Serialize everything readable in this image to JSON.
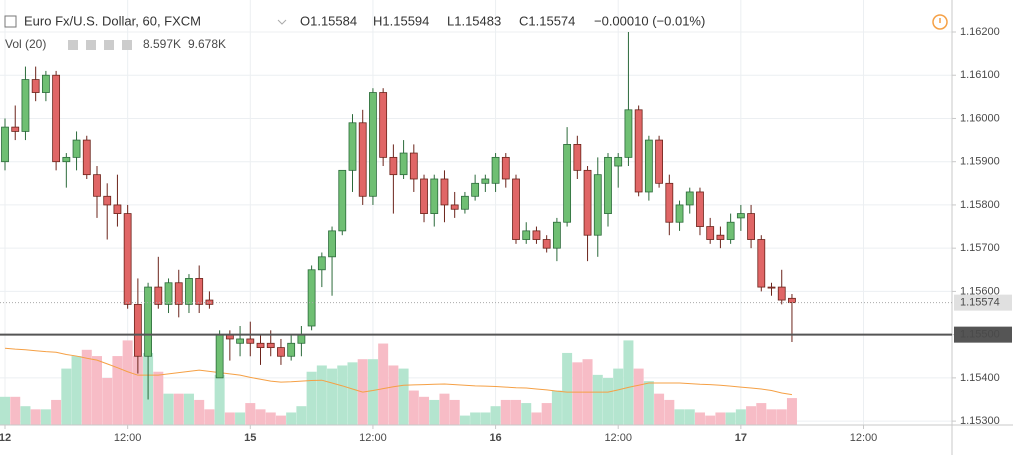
{
  "chart_data": {
    "type": "candlestick",
    "title": "Euro Fx/U.S. Dollar, 60, FXCM",
    "ohlc_legend": [
      "O1.15584",
      "H1.15594",
      "L1.15483",
      "C1.15574"
    ],
    "change": "−0.00010 (−0.01%)",
    "volume_legend": {
      "name": "Vol (20)",
      "volume": "8.597K",
      "ma": "9.678K"
    },
    "open": [
      1.159,
      1.1598,
      1.1597,
      1.1609,
      1.1606,
      1.161,
      1.159,
      1.1591,
      1.1595,
      1.1587,
      1.1582,
      1.158,
      1.1578,
      1.1557,
      1.1545,
      1.1561,
      1.1557,
      1.1562,
      1.1557,
      1.1563,
      1.1558,
      1.154,
      1.155,
      1.1548,
      1.1549,
      1.1548,
      1.1548,
      1.1547,
      1.1545,
      1.1548,
      1.1552,
      1.1565,
      1.1568,
      1.1574,
      1.1588,
      1.1599,
      1.1582,
      1.1606,
      1.1591,
      1.1587,
      1.1592,
      1.1586,
      1.1578,
      1.1586,
      1.158,
      1.1579,
      1.1582,
      1.1585,
      1.1585,
      1.1591,
      1.1586,
      1.1572,
      1.1574,
      1.1572,
      1.157,
      1.1576,
      1.1594,
      1.1588,
      1.1573,
      1.1578,
      1.1589,
      1.1591,
      1.1602,
      1.1583,
      1.1595,
      1.1585,
      1.1576,
      1.158,
      1.1583,
      1.1575,
      1.1573,
      1.1572,
      1.1577,
      1.1578,
      1.1572,
      1.1561,
      1.1561,
      1.15584
    ],
    "high": [
      1.16,
      1.1603,
      1.1612,
      1.1612,
      1.1611,
      1.1611,
      1.1592,
      1.1597,
      1.1596,
      1.1589,
      1.1585,
      1.1587,
      1.158,
      1.1563,
      1.1562,
      1.1568,
      1.1563,
      1.1565,
      1.1564,
      1.1566,
      1.156,
      1.1551,
      1.1551,
      1.1552,
      1.1553,
      1.155,
      1.1551,
      1.1549,
      1.155,
      1.1552,
      1.1566,
      1.1569,
      1.1575,
      1.1588,
      1.1601,
      1.1602,
      1.1607,
      1.1607,
      1.1594,
      1.1595,
      1.1594,
      1.1587,
      1.1587,
      1.1588,
      1.1583,
      1.1583,
      1.1587,
      1.1587,
      1.1592,
      1.1592,
      1.1587,
      1.1576,
      1.1575,
      1.1573,
      1.1577,
      1.1598,
      1.1596,
      1.1589,
      1.1591,
      1.1592,
      1.1592,
      1.162,
      1.1603,
      1.1596,
      1.1596,
      1.1587,
      1.1581,
      1.1584,
      1.1584,
      1.1577,
      1.1575,
      1.1578,
      1.158,
      1.158,
      1.1573,
      1.1562,
      1.1565,
      1.15594
    ],
    "low": [
      1.1588,
      1.1595,
      1.1595,
      1.1604,
      1.1604,
      1.1588,
      1.1584,
      1.1588,
      1.1586,
      1.1577,
      1.1572,
      1.1575,
      1.1556,
      1.1541,
      1.1535,
      1.1556,
      1.1555,
      1.1554,
      1.1555,
      1.1555,
      1.1556,
      1.154,
      1.1544,
      1.1545,
      1.1545,
      1.1543,
      1.1545,
      1.1543,
      1.1544,
      1.1545,
      1.1551,
      1.1561,
      1.1559,
      1.1573,
      1.1583,
      1.158,
      1.158,
      1.1589,
      1.1578,
      1.1586,
      1.1583,
      1.1576,
      1.1575,
      1.1576,
      1.1577,
      1.1578,
      1.1581,
      1.1583,
      1.1583,
      1.1584,
      1.1571,
      1.1571,
      1.1571,
      1.1569,
      1.1567,
      1.1575,
      1.1586,
      1.1567,
      1.1568,
      1.1575,
      1.1584,
      1.1589,
      1.1582,
      1.1581,
      1.1584,
      1.1573,
      1.1574,
      1.1578,
      1.1573,
      1.1571,
      1.157,
      1.1571,
      1.1574,
      1.157,
      1.156,
      1.1559,
      1.1557,
      1.15483
    ],
    "close": [
      1.1598,
      1.1597,
      1.1609,
      1.1606,
      1.161,
      1.159,
      1.1591,
      1.1595,
      1.1587,
      1.1582,
      1.158,
      1.1578,
      1.1557,
      1.1545,
      1.1561,
      1.1557,
      1.1562,
      1.1557,
      1.1563,
      1.1557,
      1.1557,
      1.155,
      1.1549,
      1.1549,
      1.1548,
      1.1547,
      1.1547,
      1.1545,
      1.1548,
      1.155,
      1.1565,
      1.1568,
      1.1574,
      1.1588,
      1.1599,
      1.1582,
      1.1606,
      1.1591,
      1.1587,
      1.1592,
      1.1586,
      1.1578,
      1.1586,
      1.158,
      1.1579,
      1.1582,
      1.1585,
      1.1586,
      1.1591,
      1.1586,
      1.1572,
      1.1574,
      1.1572,
      1.157,
      1.1576,
      1.1594,
      1.1588,
      1.1573,
      1.1587,
      1.1591,
      1.1591,
      1.1602,
      1.1583,
      1.1595,
      1.1585,
      1.1576,
      1.158,
      1.1583,
      1.1575,
      1.1572,
      1.1572,
      1.1576,
      1.1578,
      1.1572,
      1.1561,
      1.1561,
      1.1558,
      1.15574
    ],
    "volume": [
      9,
      9,
      6,
      5,
      5,
      8,
      18,
      22,
      24,
      22,
      15,
      22,
      27,
      22,
      23,
      17,
      10,
      10,
      10,
      8,
      5,
      16,
      4,
      4,
      7,
      5,
      4,
      3,
      4,
      6,
      17,
      19,
      18,
      19,
      20,
      21,
      21,
      26,
      19,
      18,
      11,
      9,
      8,
      10,
      8,
      3,
      4,
      4,
      6,
      8,
      8,
      7,
      4,
      7,
      11,
      23,
      20,
      21,
      16,
      15,
      18,
      27,
      18,
      14,
      10,
      8,
      5,
      5,
      4,
      3,
      4,
      4,
      5,
      6,
      7,
      5,
      5,
      8.597
    ],
    "volume_ma": [
      24.5,
      24.2,
      24,
      23.7,
      23.4,
      23.2,
      22.5,
      22,
      21.3,
      20.7,
      19.5,
      18.3,
      17,
      15.9,
      15.9,
      15.9,
      16.3,
      16.7,
      17.1,
      17.5,
      17.1,
      16.7,
      16.3,
      15.9,
      15.2,
      14.6,
      14,
      13.7,
      13.8,
      14,
      14.2,
      14.3,
      13.4,
      12.5,
      11.5,
      10.5,
      11,
      11.6,
      12.2,
      12.7,
      12.8,
      12.9,
      13,
      13.1,
      12.9,
      12.7,
      12.5,
      12.4,
      12.3,
      12.1,
      11.9,
      11.8,
      11.5,
      11.2,
      10.8,
      10.5,
      10.5,
      10.5,
      10.5,
      10.5,
      11.2,
      12,
      12.7,
      13.4,
      13.4,
      13.4,
      13.4,
      13.2,
      13,
      12.9,
      12.7,
      12.4,
      12.1,
      11.8,
      11.5,
      11,
      10.2,
      9.678
    ],
    "up_color": "#6fbf73",
    "down_color": "#e06666",
    "up_volume_color": "#b4e5cf",
    "down_volume_color": "#f7bcc6",
    "ma_color": "#f5a045",
    "xlim": [
      -0.49,
      92.66
    ],
    "xticks": [
      {
        "value": 0,
        "label": "12"
      },
      {
        "value": 12,
        "label": "12:00"
      },
      {
        "value": 24,
        "label": "15"
      },
      {
        "value": 36,
        "label": "12:00"
      },
      {
        "value": 48,
        "label": "16"
      },
      {
        "value": 60,
        "label": "12:00"
      },
      {
        "value": 72,
        "label": "17"
      },
      {
        "value": 84,
        "label": "12:00"
      }
    ],
    "ylim": [
      1.15291,
      1.16274
    ],
    "yticks": [
      {
        "value": 1.153,
        "label": "1.15300"
      },
      {
        "value": 1.154,
        "label": "1.15400"
      },
      {
        "value": 1.155,
        "label": "1.15500"
      },
      {
        "value": 1.156,
        "label": "1.15600"
      },
      {
        "value": 1.157,
        "label": "1.15700"
      },
      {
        "value": 1.158,
        "label": "1.15800"
      },
      {
        "value": 1.159,
        "label": "1.15900"
      },
      {
        "value": 1.16,
        "label": "1.16000"
      },
      {
        "value": 1.161,
        "label": "1.16100"
      },
      {
        "value": 1.162,
        "label": "1.16200"
      }
    ],
    "volume_ylim": [
      0,
      30
    ],
    "last_price": {
      "value": 1.15574,
      "label": "1.15574"
    },
    "horizontal_line": {
      "value": 1.155,
      "label": "1.15500"
    },
    "grid": true
  }
}
